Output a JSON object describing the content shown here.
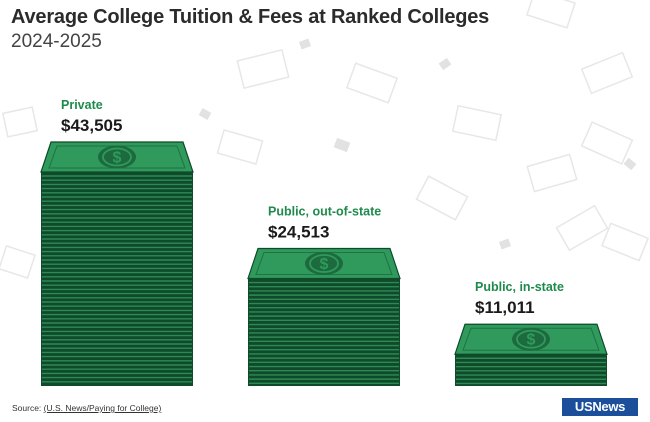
{
  "title": "Average College Tuition & Fees at Ranked Colleges",
  "subtitle": "2024-2025",
  "source_prefix": "Source: ",
  "source_link": "(U.S. News/Paying for College)",
  "logo_text": "USNews",
  "colors": {
    "label_green": "#1e8a4c",
    "top_green": "#2f9a5c",
    "stack_dark": "#0f4a2a",
    "stack_line": "#2e8a55",
    "medallion": "#1c6a3d"
  },
  "chart_data": {
    "type": "bar",
    "title": "Average College Tuition & Fees at Ranked Colleges",
    "subtitle": "2024-2025",
    "categories": [
      "Private",
      "Public, out-of-state",
      "Public, in-state"
    ],
    "values": [
      43505,
      24513,
      11011
    ],
    "value_labels": [
      "$43,505",
      "$24,513",
      "$11,011"
    ],
    "icon": "dollar-bill-stack"
  }
}
